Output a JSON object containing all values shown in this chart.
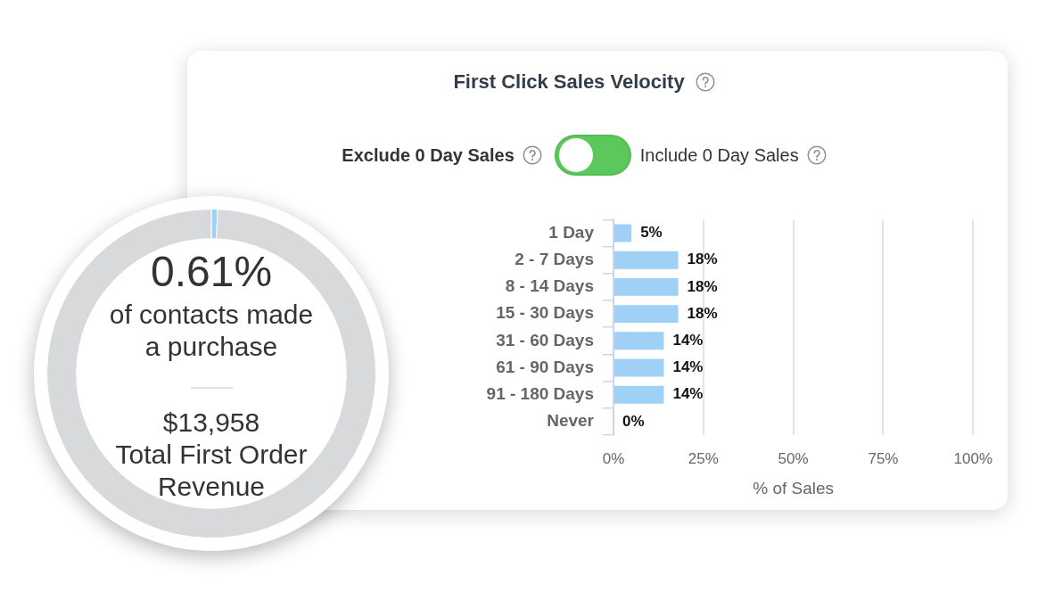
{
  "chart_data": [
    {
      "type": "bar",
      "orientation": "horizontal",
      "title": "First Click Sales Velocity",
      "annotations": [
        "Exclude 0 Day Sales",
        "Include 0 Day Sales"
      ],
      "categories": [
        "1 Day",
        "2 - 7 Days",
        "8 - 14 Days",
        "15 - 30 Days",
        "31 - 60 Days",
        "61 - 90 Days",
        "91 - 180 Days",
        "Never"
      ],
      "values": [
        5,
        18,
        18,
        18,
        14,
        14,
        14,
        0
      ],
      "value_labels": [
        "5%",
        "18%",
        "18%",
        "18%",
        "14%",
        "14%",
        "14%",
        "0%"
      ],
      "color": "#9fd1f7",
      "xlim": [
        0,
        100
      ],
      "xticks": [
        {
          "value": 0,
          "label": "0%"
        },
        {
          "value": 25,
          "label": "25%"
        },
        {
          "value": 50,
          "label": "50%"
        },
        {
          "value": 75,
          "label": "75%"
        },
        {
          "value": 100,
          "label": "100%"
        }
      ],
      "xlabel": "% of Sales",
      "grid": "x"
    },
    {
      "type": "donut",
      "categories": [
        null,
        null
      ],
      "values": [
        0.61,
        99.39
      ],
      "colors": [
        "#9fd1f7",
        "#d8d9db"
      ],
      "annotations": [
        "0.61%",
        "of contacts made a purchase",
        "$13,958",
        "Total First Order Revenue"
      ]
    }
  ]
}
